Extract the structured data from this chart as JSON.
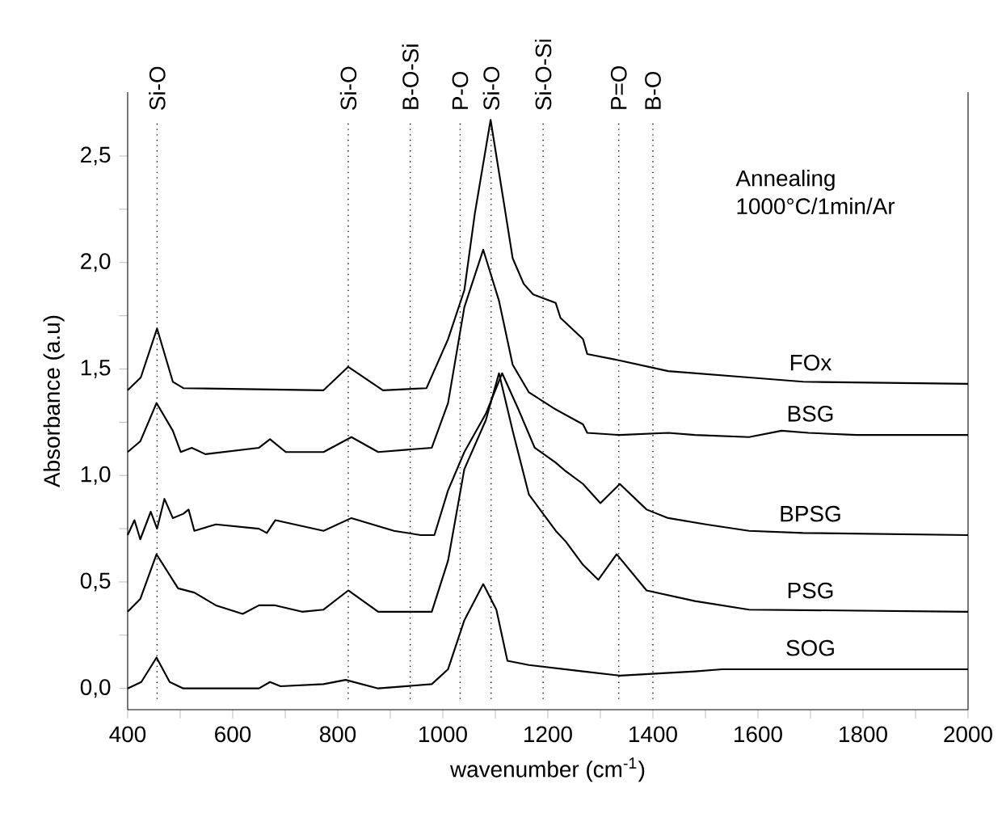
{
  "chart_data": {
    "type": "line",
    "xlabel": "wavenumber  (cm$^{-1}$)",
    "ylabel": "Absorbance  (a.u)",
    "xlim": [
      400,
      2000
    ],
    "ylim": [
      -0.1,
      2.8
    ],
    "xticks": [
      400,
      {
        "value": 500,
        "label": null
      },
      600,
      {
        "value": 700,
        "label": null
      },
      800,
      {
        "value": 900,
        "label": null
      },
      1000,
      {
        "value": 1100,
        "label": null
      },
      1200,
      {
        "value": 1300,
        "label": null
      },
      1400,
      {
        "value": 1500,
        "label": null
      },
      1600,
      {
        "value": 1700,
        "label": null
      },
      1800,
      {
        "value": 1900,
        "label": null
      },
      2000
    ],
    "yticks": [
      {
        "value": 0,
        "label": "0,0"
      },
      {
        "value": 0.25,
        "label": null
      },
      {
        "value": 0.5,
        "label": "0,5"
      },
      {
        "value": 0.75,
        "label": null
      },
      {
        "value": 1.0,
        "label": "1,0"
      },
      {
        "value": 1.25,
        "label": null
      },
      {
        "value": 1.5,
        "label": "1,5"
      },
      {
        "value": 1.75,
        "label": null
      },
      {
        "value": 2.0,
        "label": "2,0"
      },
      {
        "value": 2.25,
        "label": null
      },
      {
        "value": 2.5,
        "label": "2,5"
      }
    ],
    "grid": false,
    "legend": false,
    "marker": "none",
    "line_style": "solid",
    "annotations": [
      "Annealing",
      "1000°C/1min/Ar"
    ],
    "ref_lines": [
      {
        "axis": "x",
        "value": 456,
        "label": "Si-O",
        "color": "#000000",
        "line_style": "dotted"
      },
      {
        "axis": "x",
        "value": 820,
        "label": "Si-O",
        "color": "#000000",
        "line_style": "dotted"
      },
      {
        "axis": "x",
        "value": 938,
        "label": "B-O-Si",
        "color": "#000000",
        "line_style": "dotted"
      },
      {
        "axis": "x",
        "value": 1033,
        "label": "P-O",
        "color": "#000000",
        "line_style": "dotted"
      },
      {
        "axis": "x",
        "value": 1092,
        "label": "Si-O",
        "color": "#000000",
        "line_style": "dotted"
      },
      {
        "axis": "x",
        "value": 1191,
        "label": "Si-O-Si",
        "color": "#000000",
        "line_style": "dotted"
      },
      {
        "axis": "x",
        "value": 1335,
        "label": "P=O",
        "color": "#000000",
        "line_style": "dotted"
      },
      {
        "axis": "x",
        "value": 1400,
        "label": "B-O",
        "color": "#000000",
        "line_style": "dotted"
      }
    ],
    "series": [
      {
        "name": "FOx",
        "color": "#000000",
        "x": [
          400,
          425,
          456,
          486,
          506,
          773,
          820,
          886,
          969,
          1010,
          1041,
          1061,
          1091,
          1115,
          1133,
          1154,
          1172,
          1215,
          1224,
          1267,
          1275,
          1337,
          1429,
          1583,
          1686,
          2000
        ],
        "values": [
          1.4,
          1.46,
          1.69,
          1.44,
          1.41,
          1.4,
          1.51,
          1.4,
          1.41,
          1.64,
          1.87,
          2.23,
          2.67,
          2.3,
          2.02,
          1.9,
          1.85,
          1.81,
          1.74,
          1.64,
          1.57,
          1.54,
          1.49,
          1.46,
          1.44,
          1.43
        ]
      },
      {
        "name": "BSG",
        "color": "#000000",
        "x": [
          400,
          424,
          455,
          486,
          501,
          522,
          548,
          650,
          671,
          701,
          773,
          826,
          877,
          979,
          1010,
          1041,
          1077,
          1107,
          1133,
          1164,
          1215,
          1267,
          1275,
          1337,
          1429,
          1480,
          1583,
          1645,
          1696,
          1788,
          2000
        ],
        "values": [
          1.11,
          1.16,
          1.34,
          1.21,
          1.11,
          1.13,
          1.1,
          1.13,
          1.17,
          1.11,
          1.11,
          1.18,
          1.11,
          1.13,
          1.34,
          1.79,
          2.06,
          1.82,
          1.52,
          1.39,
          1.31,
          1.24,
          1.2,
          1.19,
          1.2,
          1.19,
          1.18,
          1.21,
          1.2,
          1.19,
          1.19
        ]
      },
      {
        "name": "BPSG",
        "color": "#000000",
        "x": [
          400,
          413,
          424,
          444,
          456,
          470,
          486,
          506,
          516,
          527,
          568,
          650,
          665,
          681,
          773,
          826,
          907,
          958,
          984,
          1010,
          1041,
          1082,
          1113,
          1144,
          1175,
          1215,
          1234,
          1267,
          1300,
          1337,
          1388,
          1429,
          1501,
          1583,
          1686,
          2000
        ],
        "values": [
          0.72,
          0.79,
          0.7,
          0.83,
          0.75,
          0.89,
          0.8,
          0.82,
          0.84,
          0.74,
          0.77,
          0.75,
          0.73,
          0.79,
          0.74,
          0.8,
          0.74,
          0.72,
          0.72,
          0.93,
          1.11,
          1.29,
          1.48,
          1.31,
          1.13,
          1.06,
          1.02,
          0.96,
          0.87,
          0.96,
          0.84,
          0.8,
          0.77,
          0.74,
          0.73,
          0.72
        ]
      },
      {
        "name": "PSG",
        "color": "#000000",
        "x": [
          400,
          424,
          455,
          496,
          527,
          568,
          619,
          650,
          681,
          732,
          773,
          820,
          877,
          979,
          1010,
          1041,
          1082,
          1107,
          1133,
          1164,
          1215,
          1234,
          1267,
          1296,
          1331,
          1388,
          1480,
          1583,
          2000
        ],
        "values": [
          0.36,
          0.42,
          0.63,
          0.47,
          0.45,
          0.39,
          0.35,
          0.39,
          0.39,
          0.36,
          0.37,
          0.46,
          0.36,
          0.36,
          0.6,
          1.03,
          1.26,
          1.48,
          1.21,
          0.91,
          0.74,
          0.69,
          0.58,
          0.51,
          0.63,
          0.46,
          0.41,
          0.37,
          0.36
        ]
      },
      {
        "name": "SOG",
        "color": "#000000",
        "x": [
          400,
          426,
          455,
          480,
          506,
          650,
          671,
          691,
          773,
          815,
          877,
          979,
          1010,
          1041,
          1077,
          1102,
          1123,
          1164,
          1267,
          1337,
          1480,
          1532,
          1686,
          2000
        ],
        "values": [
          0.0,
          0.03,
          0.145,
          0.03,
          0.0,
          0.0,
          0.03,
          0.01,
          0.02,
          0.04,
          0.0,
          0.02,
          0.09,
          0.32,
          0.49,
          0.37,
          0.13,
          0.11,
          0.08,
          0.06,
          0.08,
          0.09,
          0.09,
          0.09
        ]
      }
    ]
  }
}
